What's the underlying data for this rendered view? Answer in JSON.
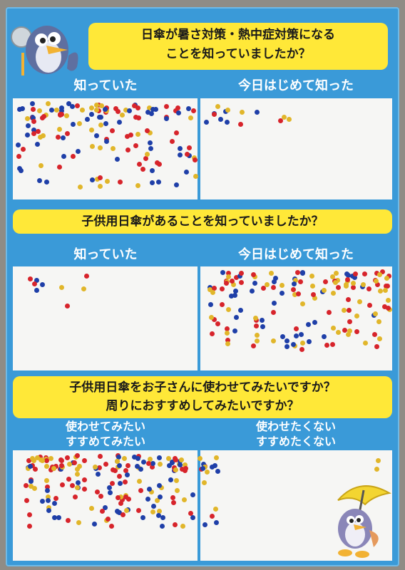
{
  "questions": [
    {
      "line1": "日傘が暑さ対策・熱中症対策になる",
      "line2": "ことを知っていましたか？",
      "left": "知っていた",
      "right": "今日はじめて知った"
    },
    {
      "line1": "子供用日傘があることを知っていましたか？",
      "left": "知っていた",
      "right": "今日はじめて知った"
    },
    {
      "line1": "子供用日傘をお子さんに使わせてみたいですか？",
      "line2": "周りにおすすめしてみたいですか？",
      "left1": "使わせてみたい",
      "left2": "すすめてみたい",
      "right1": "使わせたくない",
      "right2": "すすめたくない"
    }
  ],
  "colors": {
    "board": "#3a9ad8",
    "banner": "#ffe838",
    "red": "#d7242b",
    "blue": "#1f3fa8",
    "yellow": "#e1b62a"
  },
  "icons": {
    "mascot_top": "bird-mascot-icon",
    "mascot_bottom": "bird-umbrella-mascot-icon"
  }
}
